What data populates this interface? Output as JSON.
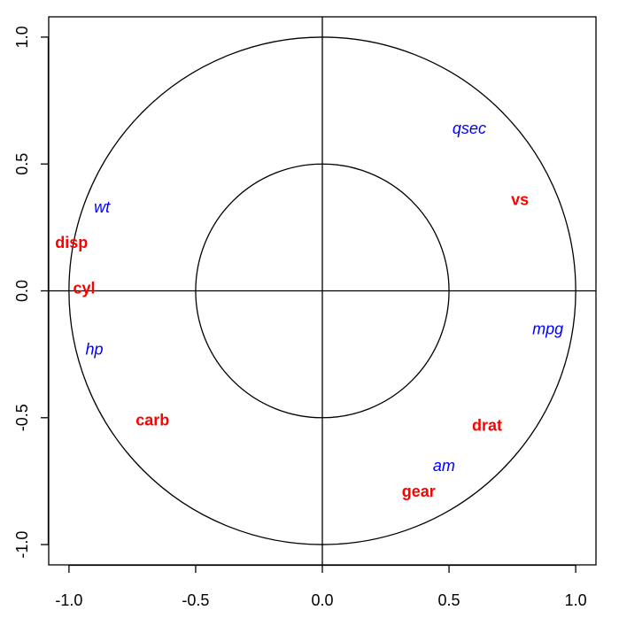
{
  "chart_data": {
    "type": "scatter",
    "title": "",
    "xlabel": "",
    "ylabel": "",
    "xlim": [
      -1.0,
      1.0
    ],
    "ylim": [
      -1.0,
      1.0
    ],
    "x_ticks": [
      -1.0,
      -0.5,
      0.0,
      0.5,
      1.0
    ],
    "y_ticks": [
      -1.0,
      -0.5,
      0.0,
      0.5,
      1.0
    ],
    "x_tick_labels": [
      "-1.0",
      "-0.5",
      "0.0",
      "0.5",
      "1.0"
    ],
    "y_tick_labels": [
      "-1.0",
      "-0.5",
      "0.0",
      "0.5",
      "1.0"
    ],
    "circles": [
      1.0,
      0.5
    ],
    "reference_lines": {
      "x": 0.0,
      "y": 0.0
    },
    "grid": false,
    "legend": "none",
    "colors": {
      "red": "#ff0000",
      "blue": "#0000ff"
    },
    "series": [
      {
        "color": "#ff0000",
        "style": "bold",
        "points": [
          {
            "label": "disp",
            "x": -0.99,
            "y": 0.19
          },
          {
            "label": "cyl",
            "x": -0.94,
            "y": 0.01
          },
          {
            "label": "carb",
            "x": -0.67,
            "y": -0.51
          },
          {
            "label": "vs",
            "x": 0.78,
            "y": 0.36
          },
          {
            "label": "drat",
            "x": 0.65,
            "y": -0.53
          },
          {
            "label": "gear",
            "x": 0.38,
            "y": -0.79
          }
        ]
      },
      {
        "color": "#0000ff",
        "style": "italic",
        "points": [
          {
            "label": "wt",
            "x": -0.87,
            "y": 0.33
          },
          {
            "label": "hp",
            "x": -0.9,
            "y": -0.23
          },
          {
            "label": "qsec",
            "x": 0.58,
            "y": 0.64
          },
          {
            "label": "mpg",
            "x": 0.89,
            "y": -0.15
          },
          {
            "label": "am",
            "x": 0.48,
            "y": -0.69
          }
        ]
      }
    ]
  }
}
